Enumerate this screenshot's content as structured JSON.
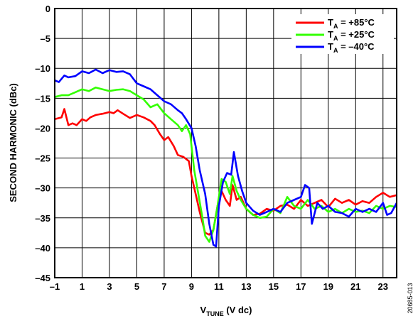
{
  "chart_data": {
    "type": "line",
    "xlabel_main": "V",
    "xlabel_sub": "TUNE",
    "xlabel_rest": " (V dc)",
    "ylabel": "SECOND HARMONIC (dBc)",
    "xlim": [
      -1,
      24
    ],
    "ylim": [
      -45,
      0
    ],
    "x_ticks": [
      -1,
      1,
      3,
      5,
      7,
      9,
      11,
      13,
      15,
      17,
      19,
      21,
      23
    ],
    "x_tick_labels": [
      "–1",
      "1",
      "3",
      "5",
      "7",
      "9",
      "11",
      "13",
      "15",
      "17",
      "19",
      "21",
      "23"
    ],
    "y_ticks": [
      0,
      -5,
      -10,
      -15,
      -20,
      -25,
      -30,
      -35,
      -40,
      -45
    ],
    "y_tick_labels": [
      "0",
      "–5",
      "–10",
      "–15",
      "–20",
      "–25",
      "–30",
      "–35",
      "–40",
      "–45"
    ],
    "grid": true,
    "legend_position": "top-right",
    "figure_id": "20685-013",
    "series": [
      {
        "name_main": "T",
        "name_sub": "A",
        "name_rest": " = +85°C",
        "color": "#ff0000",
        "points": [
          [
            -1,
            -18.5
          ],
          [
            -0.5,
            -18.2
          ],
          [
            -0.3,
            -16.8
          ],
          [
            0,
            -19.5
          ],
          [
            0.3,
            -19.2
          ],
          [
            0.6,
            -19.5
          ],
          [
            1,
            -18.5
          ],
          [
            1.3,
            -18.8
          ],
          [
            1.6,
            -18.2
          ],
          [
            2,
            -17.8
          ],
          [
            2.5,
            -17.6
          ],
          [
            3,
            -17.3
          ],
          [
            3.3,
            -17.5
          ],
          [
            3.6,
            -17.0
          ],
          [
            4,
            -17.6
          ],
          [
            4.5,
            -18.3
          ],
          [
            5,
            -17.8
          ],
          [
            5.5,
            -18.2
          ],
          [
            6,
            -18.8
          ],
          [
            6.3,
            -19.5
          ],
          [
            6.7,
            -21.0
          ],
          [
            7,
            -22.0
          ],
          [
            7.3,
            -21.5
          ],
          [
            7.7,
            -23.0
          ],
          [
            8,
            -24.5
          ],
          [
            8.4,
            -24.8
          ],
          [
            8.8,
            -25.5
          ],
          [
            9,
            -28.0
          ],
          [
            9.3,
            -31.0
          ],
          [
            9.6,
            -34.0
          ],
          [
            10,
            -37.5
          ],
          [
            10.3,
            -37.8
          ],
          [
            10.6,
            -37.0
          ],
          [
            10.9,
            -33.0
          ],
          [
            11.2,
            -30.5
          ],
          [
            11.5,
            -32.0
          ],
          [
            11.8,
            -33.0
          ],
          [
            12,
            -29.5
          ],
          [
            12.3,
            -32.0
          ],
          [
            12.6,
            -31.5
          ],
          [
            13,
            -33.5
          ],
          [
            13.5,
            -34.5
          ],
          [
            14,
            -34.3
          ],
          [
            14.5,
            -33.5
          ],
          [
            15,
            -33.8
          ],
          [
            15.5,
            -33.0
          ],
          [
            16,
            -32.8
          ],
          [
            16.5,
            -33.5
          ],
          [
            17,
            -32.0
          ],
          [
            17.5,
            -33.0
          ],
          [
            18,
            -32.5
          ],
          [
            18.5,
            -32.0
          ],
          [
            19,
            -33.2
          ],
          [
            19.5,
            -31.8
          ],
          [
            20,
            -32.5
          ],
          [
            20.5,
            -32.0
          ],
          [
            21,
            -32.8
          ],
          [
            21.5,
            -32.2
          ],
          [
            22,
            -32.5
          ],
          [
            22.5,
            -31.5
          ],
          [
            23,
            -30.8
          ],
          [
            23.5,
            -31.5
          ],
          [
            24,
            -31.2
          ]
        ]
      },
      {
        "name_main": "T",
        "name_sub": "A",
        "name_rest": " = +25°C",
        "color": "#33ff00",
        "points": [
          [
            -1,
            -14.8
          ],
          [
            -0.5,
            -14.5
          ],
          [
            0,
            -14.5
          ],
          [
            0.5,
            -14.0
          ],
          [
            1,
            -13.5
          ],
          [
            1.5,
            -13.8
          ],
          [
            2,
            -13.2
          ],
          [
            2.5,
            -13.5
          ],
          [
            3,
            -13.8
          ],
          [
            3.5,
            -13.6
          ],
          [
            4,
            -13.5
          ],
          [
            4.5,
            -13.8
          ],
          [
            5,
            -14.5
          ],
          [
            5.5,
            -15.2
          ],
          [
            6,
            -16.5
          ],
          [
            6.5,
            -16.0
          ],
          [
            7,
            -17.5
          ],
          [
            7.5,
            -18.5
          ],
          [
            8,
            -19.5
          ],
          [
            8.3,
            -20.5
          ],
          [
            8.6,
            -19.5
          ],
          [
            8.9,
            -21.0
          ],
          [
            9.2,
            -27.0
          ],
          [
            9.5,
            -31.0
          ],
          [
            9.8,
            -35.0
          ],
          [
            10,
            -38.0
          ],
          [
            10.3,
            -39.0
          ],
          [
            10.6,
            -37.0
          ],
          [
            10.9,
            -33.0
          ],
          [
            11.2,
            -28.5
          ],
          [
            11.5,
            -29.0
          ],
          [
            11.8,
            -31.0
          ],
          [
            12,
            -28.0
          ],
          [
            12.3,
            -30.5
          ],
          [
            12.6,
            -32.0
          ],
          [
            13,
            -33.5
          ],
          [
            13.5,
            -34.5
          ],
          [
            14,
            -35.0
          ],
          [
            14.5,
            -34.8
          ],
          [
            15,
            -33.5
          ],
          [
            15.5,
            -34.2
          ],
          [
            16,
            -31.5
          ],
          [
            16.5,
            -33.0
          ],
          [
            17,
            -33.5
          ],
          [
            17.5,
            -32.0
          ],
          [
            18,
            -33.5
          ],
          [
            18.5,
            -33.0
          ],
          [
            19,
            -34.0
          ],
          [
            19.5,
            -33.5
          ],
          [
            20,
            -34.2
          ],
          [
            20.5,
            -33.5
          ],
          [
            21,
            -34.0
          ],
          [
            21.5,
            -33.8
          ],
          [
            22,
            -34.2
          ],
          [
            22.5,
            -33.0
          ],
          [
            23,
            -33.5
          ],
          [
            23.5,
            -33.0
          ],
          [
            24,
            -33.2
          ]
        ]
      },
      {
        "name_main": "T",
        "name_sub": "A",
        "name_rest": " = –40°C",
        "color": "#0000ff",
        "points": [
          [
            -1,
            -12.0
          ],
          [
            -0.7,
            -12.3
          ],
          [
            -0.3,
            -11.2
          ],
          [
            0,
            -11.5
          ],
          [
            0.5,
            -11.3
          ],
          [
            1,
            -10.5
          ],
          [
            1.5,
            -10.8
          ],
          [
            2,
            -10.2
          ],
          [
            2.5,
            -10.8
          ],
          [
            3,
            -10.3
          ],
          [
            3.5,
            -10.6
          ],
          [
            4,
            -10.5
          ],
          [
            4.5,
            -11.0
          ],
          [
            5,
            -12.5
          ],
          [
            5.5,
            -13.0
          ],
          [
            6,
            -13.5
          ],
          [
            6.5,
            -14.5
          ],
          [
            7,
            -15.5
          ],
          [
            7.5,
            -16.0
          ],
          [
            8,
            -17.0
          ],
          [
            8.3,
            -17.5
          ],
          [
            8.6,
            -18.5
          ],
          [
            9,
            -20.0
          ],
          [
            9.3,
            -23.0
          ],
          [
            9.6,
            -27.0
          ],
          [
            10,
            -31.0
          ],
          [
            10.3,
            -36.0
          ],
          [
            10.6,
            -39.5
          ],
          [
            10.8,
            -39.8
          ],
          [
            11,
            -33.0
          ],
          [
            11.3,
            -29.0
          ],
          [
            11.6,
            -27.5
          ],
          [
            11.9,
            -27.8
          ],
          [
            12.1,
            -24.0
          ],
          [
            12.4,
            -28.0
          ],
          [
            12.7,
            -30.5
          ],
          [
            13,
            -32.5
          ],
          [
            13.5,
            -33.8
          ],
          [
            14,
            -34.5
          ],
          [
            14.5,
            -34.0
          ],
          [
            15,
            -33.5
          ],
          [
            15.5,
            -34.0
          ],
          [
            16,
            -32.5
          ],
          [
            16.5,
            -32.0
          ],
          [
            17,
            -31.5
          ],
          [
            17.3,
            -29.5
          ],
          [
            17.6,
            -30.0
          ],
          [
            17.8,
            -36.0
          ],
          [
            18.2,
            -32.5
          ],
          [
            18.6,
            -33.5
          ],
          [
            19,
            -33.0
          ],
          [
            19.5,
            -34.0
          ],
          [
            20,
            -34.2
          ],
          [
            20.5,
            -34.8
          ],
          [
            21,
            -33.5
          ],
          [
            21.5,
            -34.0
          ],
          [
            22,
            -33.5
          ],
          [
            22.5,
            -34.0
          ],
          [
            23,
            -32.5
          ],
          [
            23.3,
            -34.5
          ],
          [
            23.6,
            -34.2
          ],
          [
            24,
            -32.5
          ]
        ]
      }
    ]
  }
}
